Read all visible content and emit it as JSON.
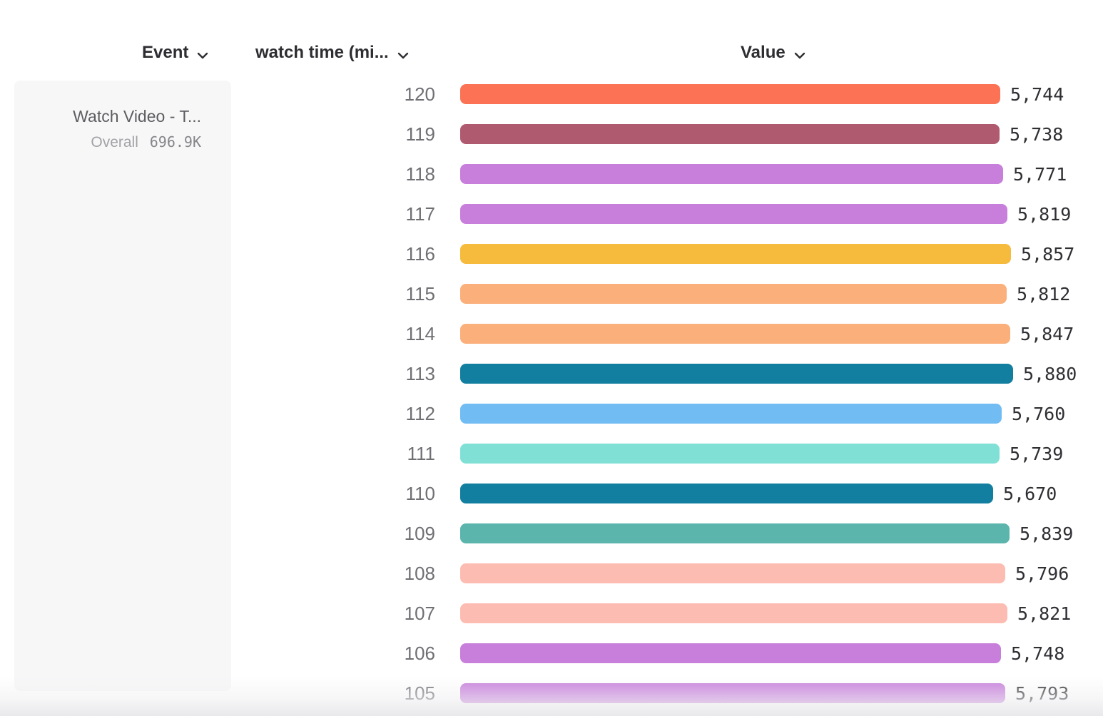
{
  "header": {
    "event_label": "Event",
    "watch_time_label": "watch time (mi...",
    "value_label": "Value"
  },
  "event_card": {
    "title": "Watch Video - T...",
    "overall_label": "Overall",
    "overall_value": "696.9K"
  },
  "chart_data": {
    "type": "bar",
    "orientation": "horizontal",
    "title": "",
    "xlabel": "Value",
    "ylabel": "watch time (mi...",
    "xlim": [
      0,
      5880
    ],
    "categories": [
      "120",
      "119",
      "118",
      "117",
      "116",
      "115",
      "114",
      "113",
      "112",
      "111",
      "110",
      "109",
      "108",
      "107",
      "106",
      "105"
    ],
    "values": [
      5744,
      5738,
      5771,
      5819,
      5857,
      5812,
      5847,
      5880,
      5760,
      5739,
      5670,
      5839,
      5796,
      5821,
      5748,
      5793
    ],
    "value_labels": [
      "5,744",
      "5,738",
      "5,771",
      "5,819",
      "5,857",
      "5,812",
      "5,847",
      "5,880",
      "5,760",
      "5,739",
      "5,670",
      "5,839",
      "5,796",
      "5,821",
      "5,748",
      "5,793"
    ],
    "colors": [
      "#FB7255",
      "#B05A6F",
      "#C77FDB",
      "#C77FDB",
      "#F6BA3C",
      "#FBAF7B",
      "#FBAF7B",
      "#137FA0",
      "#71BCF3",
      "#81E0D5",
      "#137FA0",
      "#5BB5AD",
      "#FDBCB2",
      "#FDBCB2",
      "#C77FDB",
      "#C77FDB"
    ],
    "grid": false,
    "legend": "none"
  }
}
